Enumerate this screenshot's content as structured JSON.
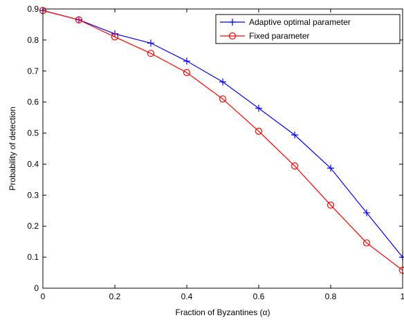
{
  "chart_data": {
    "type": "line",
    "title": "",
    "xlabel": "Fraction of Byzantines (α)",
    "ylabel": "Probability of detection",
    "xlim": [
      0,
      1
    ],
    "ylim": [
      0,
      0.9
    ],
    "xticks": [
      "0",
      "0.2",
      "0.4",
      "0.6",
      "0.8",
      "1"
    ],
    "yticks": [
      "0",
      "0.1",
      "0.2",
      "0.3",
      "0.4",
      "0.5",
      "0.6",
      "0.7",
      "0.8",
      "0.9"
    ],
    "grid": false,
    "legend_position": "top-right",
    "x": [
      0,
      0.1,
      0.2,
      0.3,
      0.4,
      0.5,
      0.6,
      0.7,
      0.8,
      0.9,
      1.0
    ],
    "series": [
      {
        "name": "Adaptive optimal parameter",
        "color": "#0000ff",
        "marker": "plus",
        "values": [
          0.895,
          0.865,
          0.82,
          0.79,
          0.732,
          0.665,
          0.58,
          0.494,
          0.387,
          0.243,
          0.1
        ]
      },
      {
        "name": "Fixed parameter",
        "color": "#ff0000",
        "marker": "circle",
        "values": [
          0.895,
          0.865,
          0.81,
          0.757,
          0.695,
          0.61,
          0.506,
          0.394,
          0.268,
          0.146,
          0.058
        ]
      }
    ]
  }
}
